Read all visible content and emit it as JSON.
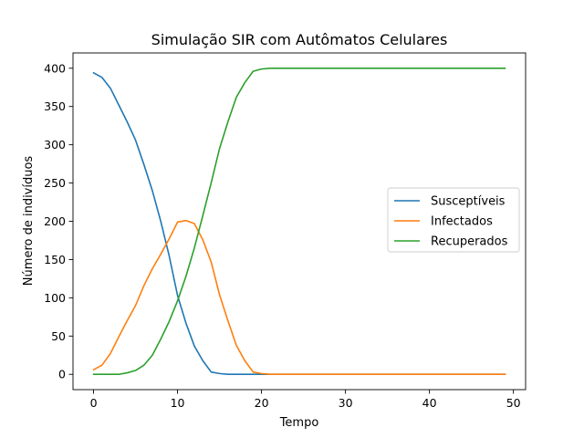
{
  "chart_data": {
    "type": "line",
    "title": "Simulação SIR com Autômatos Celulares",
    "xlabel": "Tempo",
    "ylabel": "Número de indivíduos",
    "xlim": [
      -2.45,
      51.45
    ],
    "ylim": [
      -20,
      420
    ],
    "xticks": [
      0,
      10,
      20,
      30,
      40,
      50
    ],
    "yticks": [
      0,
      50,
      100,
      150,
      200,
      250,
      300,
      350,
      400
    ],
    "grid": false,
    "legend_position": "center-right",
    "x": [
      0,
      1,
      2,
      3,
      4,
      5,
      6,
      7,
      8,
      9,
      10,
      11,
      12,
      13,
      14,
      15,
      16,
      17,
      18,
      19,
      20,
      21,
      22,
      23,
      24,
      25,
      26,
      27,
      28,
      29,
      30,
      31,
      32,
      33,
      34,
      35,
      36,
      37,
      38,
      39,
      40,
      41,
      42,
      43,
      44,
      45,
      46,
      47,
      48,
      49
    ],
    "series": [
      {
        "name": "Susceptíveis",
        "color": "#1f77b4",
        "values": [
          394,
          388,
          374,
          352,
          330,
          306,
          274,
          240,
          200,
          155,
          103,
          67,
          37,
          18,
          3,
          1,
          0,
          0,
          0,
          0,
          0,
          0,
          0,
          0,
          0,
          0,
          0,
          0,
          0,
          0,
          0,
          0,
          0,
          0,
          0,
          0,
          0,
          0,
          0,
          0,
          0,
          0,
          0,
          0,
          0,
          0,
          0,
          0,
          0,
          0
        ]
      },
      {
        "name": "Infectados",
        "color": "#ff7f0e",
        "values": [
          6,
          12,
          27,
          49,
          70,
          90,
          116,
          138,
          157,
          177,
          199,
          201,
          197,
          176,
          147,
          104,
          70,
          38,
          18,
          3,
          1,
          0,
          0,
          0,
          0,
          0,
          0,
          0,
          0,
          0,
          0,
          0,
          0,
          0,
          0,
          0,
          0,
          0,
          0,
          0,
          0,
          0,
          0,
          0,
          0,
          0,
          0,
          0,
          0,
          0
        ]
      },
      {
        "name": "Recuperados",
        "color": "#2ca02c",
        "values": [
          0,
          0,
          0,
          0,
          2,
          5,
          12,
          25,
          46,
          69,
          96,
          128,
          165,
          207,
          250,
          295,
          330,
          362,
          381,
          396,
          399,
          400,
          400,
          400,
          400,
          400,
          400,
          400,
          400,
          400,
          400,
          400,
          400,
          400,
          400,
          400,
          400,
          400,
          400,
          400,
          400,
          400,
          400,
          400,
          400,
          400,
          400,
          400,
          400,
          400
        ]
      }
    ]
  }
}
